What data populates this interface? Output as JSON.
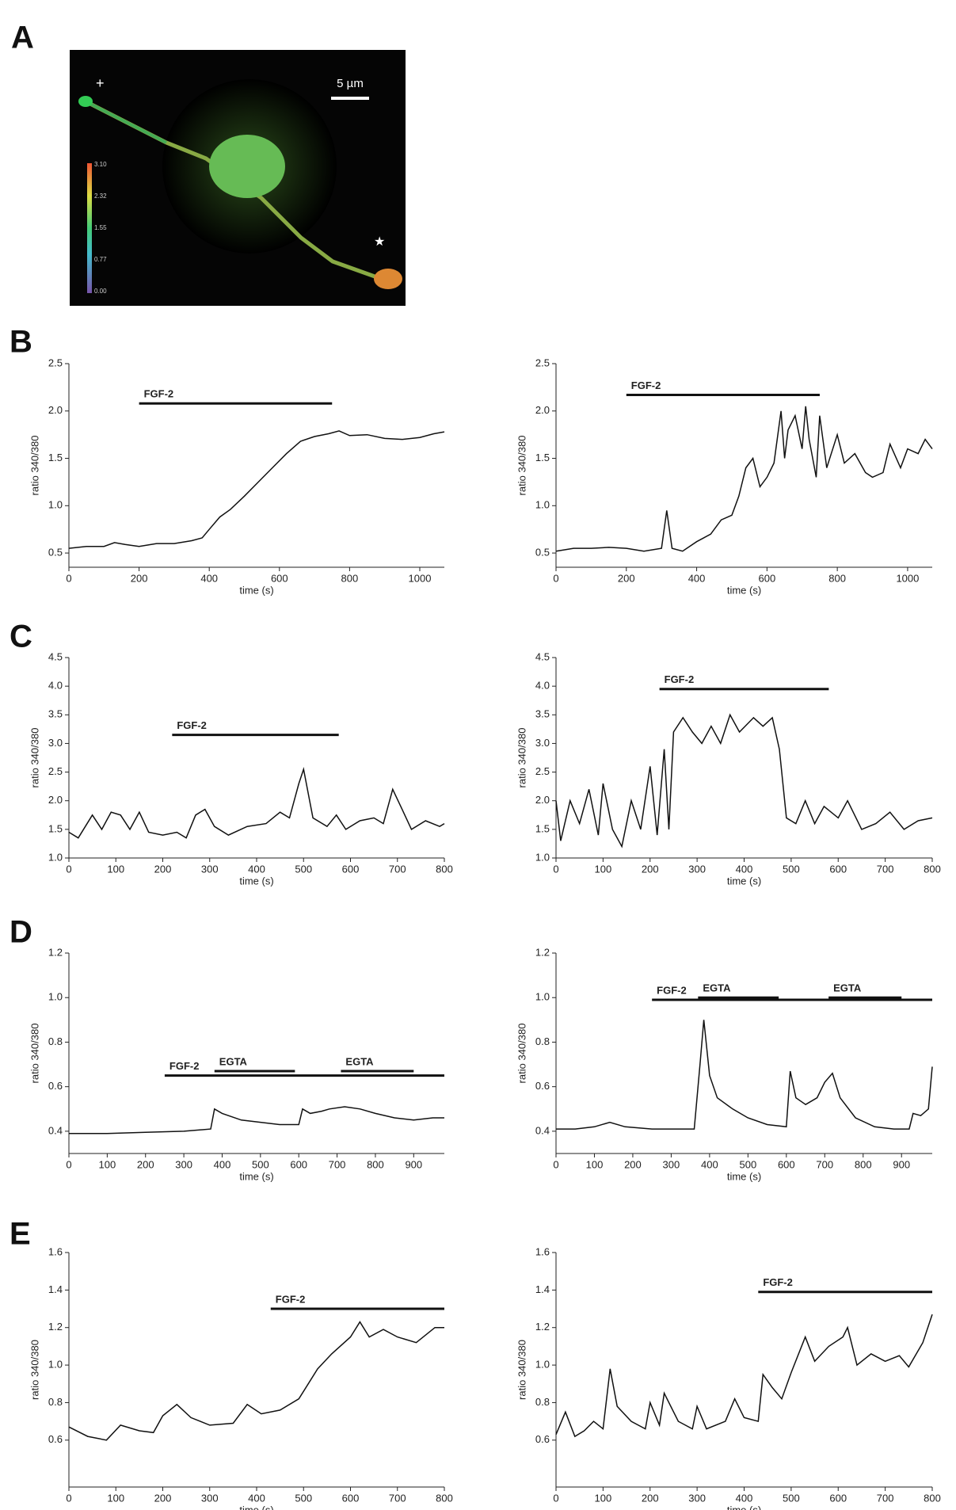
{
  "panel_labels": [
    "A",
    "B",
    "C",
    "D",
    "E"
  ],
  "image": {
    "scale_bar": "5 µm",
    "colorbar_ticks": [
      "3.10",
      "2.32",
      "1.55",
      "0.77",
      "0.00"
    ]
  },
  "chart_data": [
    {
      "type": "line",
      "xlabel": "time (s)",
      "ylabel": "ratio 340/380",
      "x": [
        0,
        50,
        100,
        130,
        160,
        200,
        250,
        300,
        350,
        380,
        400,
        430,
        460,
        500,
        540,
        580,
        620,
        660,
        700,
        740,
        770,
        800,
        850,
        900,
        950,
        1000,
        1040,
        1070
      ],
      "series": [
        {
          "color": "#111",
          "values": [
            0.55,
            0.57,
            0.57,
            0.61,
            0.59,
            0.57,
            0.6,
            0.6,
            0.63,
            0.66,
            0.75,
            0.88,
            0.96,
            1.1,
            1.25,
            1.4,
            1.55,
            1.68,
            1.73,
            1.76,
            1.79,
            1.74,
            1.75,
            1.71,
            1.7,
            1.72,
            1.76,
            1.78
          ]
        }
      ],
      "xlim": [
        0,
        1070
      ],
      "ylim": [
        0.35,
        2.5
      ],
      "xticks": [
        0,
        200,
        400,
        600,
        800,
        1000
      ],
      "yticks": [
        0.5,
        {
          "value": 1.0,
          "label": "1.0"
        },
        1.5,
        {
          "value": 2.0,
          "label": "2.0"
        },
        2.5
      ],
      "annotations": [
        {
          "text": "FGF-2",
          "x": [
            200,
            750
          ],
          "y": 2.08
        }
      ]
    },
    {
      "type": "line",
      "xlabel": "time (s)",
      "ylabel": "ratio 340/380",
      "x": [
        0,
        50,
        100,
        150,
        200,
        250,
        300,
        315,
        330,
        360,
        400,
        440,
        470,
        500,
        520,
        540,
        560,
        580,
        600,
        620,
        640,
        650,
        660,
        680,
        700,
        710,
        720,
        740,
        750,
        770,
        800,
        820,
        850,
        880,
        900,
        930,
        950,
        980,
        1000,
        1030,
        1050,
        1070
      ],
      "series": [
        {
          "color": "#111",
          "values": [
            0.52,
            0.55,
            0.55,
            0.56,
            0.55,
            0.52,
            0.55,
            0.95,
            0.55,
            0.52,
            0.62,
            0.7,
            0.85,
            0.9,
            1.1,
            1.4,
            1.5,
            1.2,
            1.3,
            1.45,
            2.0,
            1.5,
            1.8,
            1.95,
            1.6,
            2.05,
            1.7,
            1.3,
            1.95,
            1.4,
            1.75,
            1.45,
            1.55,
            1.35,
            1.3,
            1.35,
            1.65,
            1.4,
            1.6,
            1.55,
            1.7,
            1.6
          ]
        }
      ],
      "xlim": [
        0,
        1070
      ],
      "ylim": [
        0.35,
        2.5
      ],
      "xticks": [
        0,
        200,
        400,
        600,
        800,
        1000
      ],
      "yticks": [
        0.5,
        {
          "value": 1.0,
          "label": "1.0"
        },
        1.5,
        {
          "value": 2.0,
          "label": "2.0"
        },
        2.5
      ],
      "annotations": [
        {
          "text": "FGF-2",
          "x": [
            200,
            750
          ],
          "y": 2.17
        }
      ]
    },
    {
      "type": "line",
      "xlabel": "time (s)",
      "ylabel": "ratio 340/380",
      "x": [
        0,
        20,
        50,
        70,
        90,
        110,
        130,
        150,
        170,
        200,
        230,
        250,
        270,
        290,
        310,
        340,
        380,
        420,
        450,
        470,
        490,
        500,
        520,
        550,
        570,
        590,
        620,
        650,
        670,
        690,
        710,
        730,
        760,
        790,
        800
      ],
      "series": [
        {
          "color": "#111",
          "values": [
            1.45,
            1.35,
            1.75,
            1.5,
            1.8,
            1.75,
            1.5,
            1.8,
            1.45,
            1.4,
            1.45,
            1.35,
            1.75,
            1.85,
            1.55,
            1.4,
            1.55,
            1.6,
            1.8,
            1.7,
            2.3,
            2.55,
            1.7,
            1.55,
            1.75,
            1.5,
            1.65,
            1.7,
            1.6,
            2.2,
            1.85,
            1.5,
            1.65,
            1.55,
            1.6
          ]
        }
      ],
      "xlim": [
        0,
        800
      ],
      "ylim": [
        1.0,
        4.5
      ],
      "xticks": [
        0,
        100,
        200,
        300,
        400,
        500,
        600,
        700,
        800
      ],
      "yticks": [
        {
          "value": 1.0,
          "label": "1.0"
        },
        1.5,
        {
          "value": 2.0,
          "label": "2.0"
        },
        2.5,
        {
          "value": 3.0,
          "label": "3.0"
        },
        3.5,
        {
          "value": 4.0,
          "label": "4.0"
        },
        4.5
      ],
      "annotations": [
        {
          "text": "FGF-2",
          "x": [
            220,
            575
          ],
          "y": 3.15
        }
      ]
    },
    {
      "type": "line",
      "xlabel": "time (s)",
      "ylabel": "ratio 340/380",
      "x": [
        0,
        10,
        30,
        50,
        70,
        90,
        100,
        120,
        140,
        160,
        180,
        200,
        215,
        230,
        240,
        250,
        270,
        290,
        310,
        330,
        350,
        370,
        390,
        420,
        440,
        460,
        475,
        490,
        510,
        530,
        550,
        570,
        600,
        620,
        650,
        680,
        710,
        740,
        770,
        800
      ],
      "series": [
        {
          "color": "#111",
          "values": [
            2.0,
            1.3,
            2.0,
            1.6,
            2.2,
            1.4,
            2.3,
            1.5,
            1.2,
            2.0,
            1.5,
            2.6,
            1.4,
            2.9,
            1.5,
            3.2,
            3.45,
            3.2,
            3.0,
            3.3,
            3.0,
            3.5,
            3.2,
            3.45,
            3.3,
            3.45,
            2.9,
            1.7,
            1.6,
            2.0,
            1.6,
            1.9,
            1.7,
            2.0,
            1.5,
            1.6,
            1.8,
            1.5,
            1.65,
            1.7
          ]
        }
      ],
      "xlim": [
        0,
        800
      ],
      "ylim": [
        1.0,
        4.5
      ],
      "xticks": [
        0,
        100,
        200,
        300,
        400,
        500,
        600,
        700,
        800
      ],
      "yticks": [
        {
          "value": 1.0,
          "label": "1.0"
        },
        1.5,
        {
          "value": 2.0,
          "label": "2.0"
        },
        2.5,
        {
          "value": 3.0,
          "label": "3.0"
        },
        3.5,
        {
          "value": 4.0,
          "label": "4.0"
        },
        4.5
      ],
      "annotations": [
        {
          "text": "FGF-2",
          "x": [
            220,
            580
          ],
          "y": 3.95
        }
      ]
    },
    {
      "type": "line",
      "xlabel": "time (s)",
      "ylabel": "ratio 340/380",
      "x": [
        0,
        100,
        200,
        300,
        370,
        380,
        400,
        450,
        500,
        550,
        600,
        610,
        630,
        660,
        680,
        720,
        760,
        800,
        850,
        900,
        950,
        980
      ],
      "series": [
        {
          "color": "#111",
          "values": [
            0.39,
            0.39,
            0.395,
            0.4,
            0.41,
            0.5,
            0.48,
            0.45,
            0.44,
            0.43,
            0.43,
            0.5,
            0.48,
            0.49,
            0.5,
            0.51,
            0.5,
            0.48,
            0.46,
            0.45,
            0.46,
            0.46
          ]
        }
      ],
      "xlim": [
        0,
        980
      ],
      "ylim": [
        0.3,
        1.2
      ],
      "xticks": [
        0,
        100,
        200,
        300,
        400,
        500,
        600,
        700,
        800,
        900
      ],
      "yticks": [
        0.4,
        0.6,
        0.8,
        {
          "value": 1.0,
          "label": "1.0"
        },
        1.2
      ],
      "annotations": [
        {
          "text": "FGF-2",
          "x": [
            250,
            980
          ],
          "y": 0.65
        },
        {
          "text": "EGTA",
          "x": [
            380,
            590
          ],
          "y": 0.67
        },
        {
          "text": "EGTA",
          "x": [
            710,
            900
          ],
          "y": 0.67
        }
      ]
    },
    {
      "type": "line",
      "xlabel": "time (s)",
      "ylabel": "ratio 340/380",
      "x": [
        0,
        50,
        100,
        140,
        180,
        250,
        300,
        360,
        375,
        385,
        400,
        420,
        460,
        500,
        550,
        600,
        610,
        625,
        650,
        680,
        700,
        720,
        740,
        780,
        830,
        880,
        920,
        930,
        950,
        970,
        980
      ],
      "series": [
        {
          "color": "#111",
          "values": [
            0.41,
            0.41,
            0.42,
            0.44,
            0.42,
            0.41,
            0.41,
            0.41,
            0.7,
            0.9,
            0.65,
            0.55,
            0.5,
            0.46,
            0.43,
            0.42,
            0.67,
            0.55,
            0.52,
            0.55,
            0.62,
            0.66,
            0.55,
            0.46,
            0.42,
            0.41,
            0.41,
            0.48,
            0.47,
            0.5,
            0.69
          ]
        }
      ],
      "xlim": [
        0,
        980
      ],
      "ylim": [
        0.3,
        1.2
      ],
      "xticks": [
        0,
        100,
        200,
        300,
        400,
        500,
        600,
        700,
        800,
        900
      ],
      "yticks": [
        0.4,
        0.6,
        0.8,
        {
          "value": 1.0,
          "label": "1.0"
        },
        1.2
      ],
      "annotations": [
        {
          "text": "FGF-2",
          "x": [
            250,
            980
          ],
          "y": 0.99
        },
        {
          "text": "EGTA",
          "x": [
            370,
            580
          ],
          "y": 1.0
        },
        {
          "text": "EGTA",
          "x": [
            710,
            900
          ],
          "y": 1.0
        }
      ]
    },
    {
      "type": "line",
      "xlabel": "time (s)",
      "ylabel": "ratio 340/380",
      "x": [
        0,
        40,
        80,
        110,
        150,
        180,
        200,
        230,
        260,
        300,
        350,
        380,
        410,
        450,
        490,
        530,
        560,
        600,
        620,
        640,
        670,
        700,
        740,
        780,
        800
      ],
      "series": [
        {
          "color": "#111",
          "values": [
            0.67,
            0.62,
            0.6,
            0.68,
            0.65,
            0.64,
            0.73,
            0.79,
            0.72,
            0.68,
            0.69,
            0.79,
            0.74,
            0.76,
            0.82,
            0.98,
            1.06,
            1.15,
            1.23,
            1.15,
            1.19,
            1.15,
            1.12,
            1.2,
            1.2
          ]
        }
      ],
      "xlim": [
        0,
        800
      ],
      "ylim": [
        0.35,
        1.6
      ],
      "xticks": [
        0,
        100,
        200,
        300,
        400,
        500,
        600,
        700,
        800
      ],
      "yticks": [
        0.6,
        0.8,
        {
          "value": 1.0,
          "label": "1.0"
        },
        1.2,
        1.4,
        1.6
      ],
      "annotations": [
        {
          "text": "FGF-2",
          "x": [
            430,
            800
          ],
          "y": 1.3
        }
      ]
    },
    {
      "type": "line",
      "xlabel": "time (s)",
      "ylabel": "ratio 340/380",
      "x": [
        0,
        20,
        40,
        60,
        80,
        100,
        115,
        130,
        160,
        190,
        200,
        220,
        230,
        260,
        290,
        300,
        320,
        360,
        380,
        400,
        430,
        440,
        460,
        480,
        500,
        530,
        550,
        580,
        610,
        620,
        640,
        670,
        700,
        730,
        750,
        780,
        800
      ],
      "series": [
        {
          "color": "#111",
          "values": [
            0.63,
            0.75,
            0.62,
            0.65,
            0.7,
            0.66,
            0.98,
            0.78,
            0.7,
            0.66,
            0.8,
            0.68,
            0.85,
            0.7,
            0.66,
            0.78,
            0.66,
            0.7,
            0.82,
            0.72,
            0.7,
            0.95,
            0.88,
            0.82,
            0.96,
            1.15,
            1.02,
            1.1,
            1.15,
            1.2,
            1.0,
            1.06,
            1.02,
            1.05,
            0.99,
            1.12,
            1.27
          ]
        }
      ],
      "xlim": [
        0,
        800
      ],
      "ylim": [
        0.35,
        1.6
      ],
      "xticks": [
        0,
        100,
        200,
        300,
        400,
        500,
        600,
        700,
        800
      ],
      "yticks": [
        0.6,
        0.8,
        {
          "value": 1.0,
          "label": "1.0"
        },
        1.2,
        1.4,
        1.6
      ],
      "annotations": [
        {
          "text": "FGF-2",
          "x": [
            430,
            800
          ],
          "y": 1.39
        }
      ]
    }
  ]
}
